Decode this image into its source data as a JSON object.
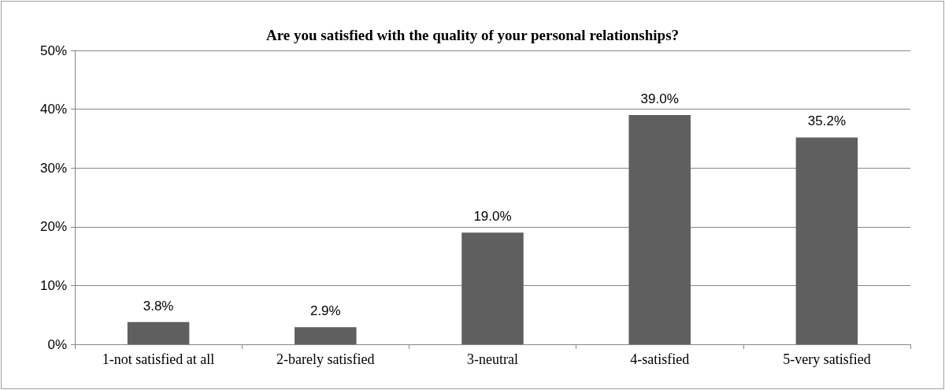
{
  "chart_data": {
    "type": "bar",
    "title": "Are you satisfied with the quality of your personal relationships?",
    "categories": [
      "1-not satisfied at all",
      "2-barely satisfied",
      "3-neutral",
      "4-satisfied",
      "5-very satisfied"
    ],
    "values": [
      3.8,
      2.9,
      19.0,
      39.0,
      35.2
    ],
    "value_labels": [
      "3.8%",
      "2.9%",
      "19.0%",
      "39.0%",
      "35.2%"
    ],
    "color": "#5f5f5f",
    "ylim": [
      0,
      50
    ],
    "yticks": [
      {
        "value": 0,
        "label": "0%"
      },
      {
        "value": 10,
        "label": "10%"
      },
      {
        "value": 20,
        "label": "20%"
      },
      {
        "value": 30,
        "label": "30%"
      },
      {
        "value": 40,
        "label": "40%"
      },
      {
        "value": 50,
        "label": "50%"
      }
    ],
    "grid": "y"
  }
}
